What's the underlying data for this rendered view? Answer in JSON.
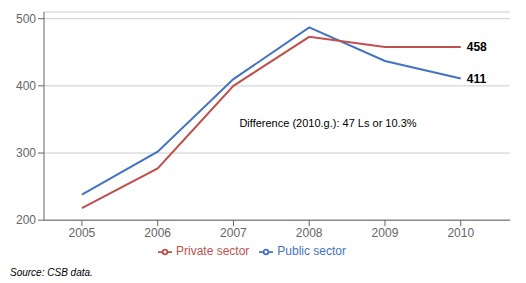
{
  "chart_data": {
    "type": "line",
    "x": [
      2005,
      2006,
      2007,
      2008,
      2009,
      2010
    ],
    "series": [
      {
        "name": "Public sector",
        "color": "#4472C4",
        "values": [
          238,
          302,
          410,
          487,
          437,
          411
        ]
      },
      {
        "name": "Private sector",
        "color": "#C0504D",
        "values": [
          218,
          277,
          400,
          473,
          458,
          458
        ]
      }
    ],
    "xlim": [
      2004.5,
      2010.65
    ],
    "xticks": [
      2005,
      2006,
      2007,
      2008,
      2009,
      2010
    ],
    "ylim": [
      200,
      510
    ],
    "yticks": [
      200,
      300,
      400,
      500
    ],
    "grid": true,
    "legend": "bottom",
    "annotations": [
      {
        "text": "411",
        "x": 2010,
        "y": 411
      },
      {
        "text": "458",
        "x": 2010,
        "y": 458
      },
      {
        "text": "Difference (2010.g.): 47 Ls or 10.3%",
        "x": 2007,
        "y": 345
      }
    ],
    "source": "Source: CSB data."
  }
}
